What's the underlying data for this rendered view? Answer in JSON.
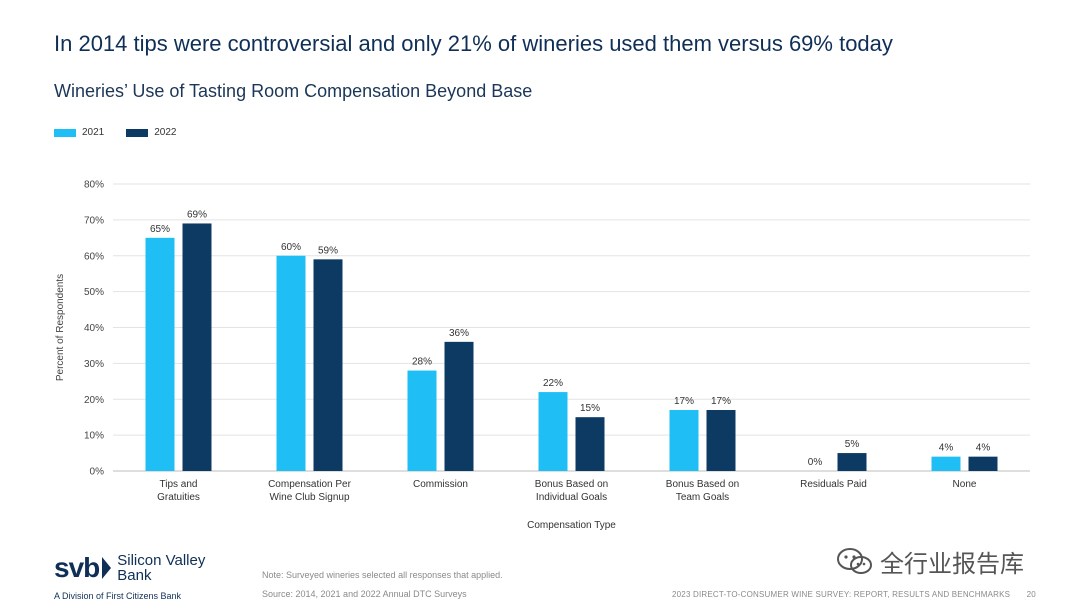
{
  "headline": "In 2014 tips were controversial and only 21% of wineries used them versus 69% today",
  "colors": {
    "series_2021": "#1fbff5",
    "series_2022": "#0d3a63",
    "grid": "#e3e3e3",
    "text": "#333333"
  },
  "chart_data": {
    "type": "bar",
    "title": "Wineries’ Use of Tasting Room Compensation Beyond Base",
    "xlabel": "Compensation Type",
    "ylabel": "Percent of Respondents",
    "ylim": [
      0,
      80
    ],
    "yticks": [
      "0%",
      "10%",
      "20%",
      "30%",
      "40%",
      "50%",
      "60%",
      "70%",
      "80%"
    ],
    "ytick_values": [
      0,
      10,
      20,
      30,
      40,
      50,
      60,
      70,
      80
    ],
    "grid": true,
    "legend_position": "top-left",
    "categories": [
      [
        "Tips and",
        "Gratuities"
      ],
      [
        "Compensation Per",
        "Wine Club Signup"
      ],
      [
        "Commission"
      ],
      [
        "Bonus Based on",
        "Individual Goals"
      ],
      [
        "Bonus Based on",
        "Team Goals"
      ],
      [
        "Residuals Paid"
      ],
      [
        "None"
      ]
    ],
    "series": [
      {
        "name": "2021",
        "values": [
          65,
          60,
          28,
          22,
          17,
          0,
          4
        ],
        "labels": [
          "65%",
          "60%",
          "28%",
          "22%",
          "17%",
          "0%",
          "4%"
        ]
      },
      {
        "name": "2022",
        "values": [
          69,
          59,
          36,
          15,
          17,
          5,
          4
        ],
        "labels": [
          "69%",
          "59%",
          "36%",
          "15%",
          "17%",
          "5%",
          "4%"
        ]
      }
    ]
  },
  "footer": {
    "logo_mark": "svb",
    "bank_name": "Silicon Valley Bank",
    "division": "A Division of First Citizens Bank",
    "note": "Note: Surveyed wineries selected all responses that applied.",
    "source": "Source: 2014, 2021 and 2022 Annual DTC Surveys",
    "report": "2023 DIRECT-TO-CONSUMER WINE SURVEY: REPORT, RESULTS AND BENCHMARKS",
    "page": "20"
  },
  "watermark": {
    "text": "全行业报告库",
    "icon": "wechat-icon"
  }
}
